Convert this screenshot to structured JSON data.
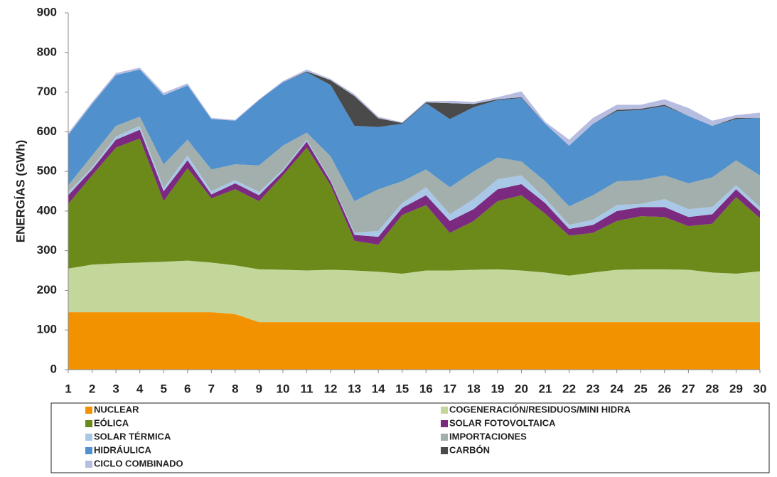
{
  "chart_data": {
    "type": "stacked_area",
    "y_label": "ENERGÍAS (GWh)",
    "categories": [
      "1",
      "2",
      "3",
      "4",
      "5",
      "6",
      "7",
      "8",
      "9",
      "10",
      "11",
      "12",
      "13",
      "14",
      "15",
      "16",
      "17",
      "18",
      "19",
      "20",
      "21",
      "22",
      "23",
      "24",
      "25",
      "26",
      "27",
      "28",
      "29",
      "30"
    ],
    "ylim": [
      0,
      900
    ],
    "yticks": [
      0,
      100,
      200,
      300,
      400,
      500,
      600,
      700,
      800,
      900
    ],
    "series": [
      {
        "name": "NUCLEAR",
        "color": "#f39200",
        "values": [
          145,
          145,
          145,
          145,
          145,
          145,
          145,
          140,
          120,
          120,
          120,
          120,
          120,
          120,
          120,
          120,
          120,
          120,
          120,
          120,
          120,
          120,
          120,
          120,
          120,
          120,
          120,
          120,
          120,
          120
        ]
      },
      {
        "name": "COGENERACIÓN/RESIDUOS/MINI HIDRA",
        "color": "#c4d79b",
        "values": [
          110,
          120,
          123,
          125,
          127,
          130,
          125,
          123,
          133,
          132,
          130,
          132,
          130,
          127,
          122,
          130,
          130,
          132,
          133,
          130,
          125,
          117,
          125,
          132,
          133,
          133,
          132,
          125,
          122,
          128
        ]
      },
      {
        "name": "EÓLICA",
        "color": "#6b8a1a",
        "values": [
          163,
          225,
          292,
          313,
          153,
          233,
          162,
          192,
          172,
          238,
          310,
          213,
          75,
          68,
          148,
          165,
          95,
          123,
          172,
          190,
          148,
          101,
          100,
          123,
          134,
          132,
          110,
          123,
          193,
          134
        ]
      },
      {
        "name": "SOLAR FOTOVOLTAICA",
        "color": "#7b2a80",
        "values": [
          22,
          15,
          20,
          22,
          25,
          20,
          10,
          15,
          15,
          10,
          15,
          10,
          15,
          20,
          18,
          25,
          30,
          30,
          30,
          28,
          27,
          17,
          20,
          25,
          23,
          25,
          23,
          24,
          20,
          18
        ]
      },
      {
        "name": "SOLAR TÉRMICA",
        "color": "#a9c8e8",
        "values": [
          8,
          5,
          8,
          10,
          8,
          12,
          8,
          8,
          8,
          5,
          5,
          3,
          5,
          15,
          12,
          20,
          17,
          25,
          25,
          22,
          12,
          10,
          13,
          15,
          8,
          20,
          20,
          18,
          10,
          10
        ]
      },
      {
        "name": "IMPORTACIONES",
        "color": "#a3afac",
        "values": [
          17,
          30,
          27,
          23,
          60,
          40,
          55,
          40,
          67,
          60,
          18,
          60,
          80,
          105,
          55,
          45,
          68,
          70,
          55,
          35,
          43,
          47,
          62,
          60,
          60,
          60,
          65,
          75,
          63,
          80
        ]
      },
      {
        "name": "HIDRÁULICA",
        "color": "#4f90cd",
        "values": [
          127,
          130,
          128,
          119,
          174,
          137,
          127,
          110,
          165,
          160,
          152,
          180,
          190,
          157,
          145,
          167,
          172,
          162,
          145,
          160,
          145,
          153,
          180,
          177,
          177,
          175,
          170,
          130,
          104,
          145
        ]
      },
      {
        "name": "CARBÓN",
        "color": "#4a4a4a",
        "values": [
          0,
          0,
          0,
          0,
          0,
          0,
          0,
          0,
          0,
          0,
          2,
          12,
          75,
          22,
          2,
          2,
          40,
          8,
          2,
          2,
          0,
          0,
          0,
          3,
          3,
          3,
          0,
          0,
          3,
          0
        ]
      },
      {
        "name": "CICLO COMBINADO",
        "color": "#b7bde0",
        "values": [
          5,
          5,
          5,
          5,
          6,
          5,
          3,
          2,
          2,
          3,
          5,
          3,
          5,
          4,
          2,
          3,
          6,
          5,
          5,
          15,
          5,
          15,
          15,
          13,
          10,
          14,
          20,
          13,
          7,
          13
        ]
      }
    ]
  }
}
